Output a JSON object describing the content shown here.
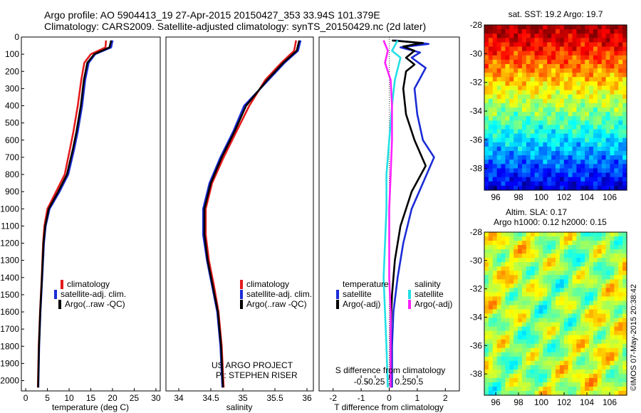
{
  "header": {
    "line1": "Argo profile: AO 5904413_19 27-Apr-2015 20150427_353 33.94S 101.379E",
    "line2": "Climatology: CARS2009. Satellite-adjusted climatology: synTS_20150429.nc (2d later)"
  },
  "colors": {
    "climatology": "#e41a1c",
    "satellite": "#1b2cd6",
    "argo": "#000000",
    "sat_salinity": "#22e0e6",
    "argo_salinity_diff": "#ff22ff"
  },
  "legends": {
    "profile": [
      "climatology",
      "satellite-adj. clim.",
      "Argo(..raw -QC)"
    ],
    "diff_temperature_title": "temperature",
    "diff_salinity_title": "salinity",
    "diff_items": [
      "satellite",
      "Argo(-adj)"
    ]
  },
  "credits": {
    "project": "US ARGO PROJECT",
    "pi": "PI: STEPHEN RISER"
  },
  "sst_map": {
    "title": "sat. SST: 19.2  Argo: 19.7"
  },
  "sla_map": {
    "title1": "Altim. SLA: 0.17",
    "title2": "Argo h1000: 0.12  h2000: 0.15"
  },
  "timestamp": "©IMOS 07-May-2015 20:38:42",
  "chart_data": [
    {
      "type": "line",
      "id": "temperature",
      "xlabel": "temperature (deg C)",
      "xlim": [
        -1,
        31
      ],
      "ylim": [
        2060,
        0
      ],
      "xticks": [
        0,
        5,
        10,
        15,
        20,
        25,
        30
      ],
      "yticks": [
        0,
        100,
        200,
        300,
        400,
        500,
        600,
        700,
        800,
        900,
        1000,
        1100,
        1200,
        1300,
        1400,
        1500,
        1600,
        1700,
        1800,
        1900,
        2000
      ],
      "series": [
        {
          "name": "climatology",
          "color": "#e41a1c",
          "points": [
            [
              18.5,
              20
            ],
            [
              18.4,
              60
            ],
            [
              15,
              100
            ],
            [
              13.5,
              150
            ],
            [
              12.8,
              250
            ],
            [
              12,
              400
            ],
            [
              11,
              550
            ],
            [
              10.2,
              650
            ],
            [
              9,
              800
            ],
            [
              7,
              900
            ],
            [
              5,
              1000
            ],
            [
              4.3,
              1100
            ],
            [
              4,
              1200
            ],
            [
              3.7,
              1400
            ],
            [
              3.3,
              1600
            ],
            [
              3,
              1800
            ],
            [
              2.8,
              2040
            ]
          ]
        },
        {
          "name": "satellite-adj. clim.",
          "color": "#1b2cd6",
          "points": [
            [
              20,
              20
            ],
            [
              19.7,
              60
            ],
            [
              16,
              100
            ],
            [
              14.5,
              150
            ],
            [
              13.7,
              250
            ],
            [
              13,
              400
            ],
            [
              12,
              550
            ],
            [
              11.2,
              650
            ],
            [
              9.8,
              800
            ],
            [
              7.8,
              900
            ],
            [
              5.5,
              1000
            ],
            [
              4.6,
              1100
            ],
            [
              4.2,
              1200
            ],
            [
              3.8,
              1400
            ],
            [
              3.4,
              1600
            ],
            [
              3.1,
              1800
            ],
            [
              2.9,
              2040
            ]
          ]
        },
        {
          "name": "Argo(..raw -QC)",
          "color": "#000000",
          "points": [
            [
              19.7,
              20
            ],
            [
              19.3,
              60
            ],
            [
              15.8,
              100
            ],
            [
              14.2,
              150
            ],
            [
              13.4,
              250
            ],
            [
              12.7,
              400
            ],
            [
              11.7,
              550
            ],
            [
              10.9,
              650
            ],
            [
              9.5,
              800
            ],
            [
              7.5,
              900
            ],
            [
              5.3,
              1000
            ],
            [
              4.5,
              1100
            ],
            [
              4.1,
              1200
            ],
            [
              3.75,
              1400
            ],
            [
              3.35,
              1600
            ],
            [
              3.05,
              1800
            ],
            [
              2.85,
              2040
            ]
          ]
        }
      ]
    },
    {
      "type": "line",
      "id": "salinity",
      "xlabel": "salinity",
      "xlim": [
        33.8,
        36.1
      ],
      "ylim": [
        2060,
        0
      ],
      "xticks": [
        34,
        34.5,
        35,
        35.5,
        36
      ],
      "series": [
        {
          "name": "climatology",
          "color": "#e41a1c",
          "points": [
            [
              35.83,
              20
            ],
            [
              35.8,
              80
            ],
            [
              35.6,
              150
            ],
            [
              35.35,
              250
            ],
            [
              35.1,
              400
            ],
            [
              34.9,
              550
            ],
            [
              34.7,
              700
            ],
            [
              34.52,
              850
            ],
            [
              34.42,
              1000
            ],
            [
              34.42,
              1150
            ],
            [
              34.47,
              1300
            ],
            [
              34.55,
              1450
            ],
            [
              34.62,
              1600
            ],
            [
              34.67,
              1800
            ],
            [
              34.7,
              2040
            ]
          ]
        },
        {
          "name": "satellite-adj. clim.",
          "color": "#1b2cd6",
          "points": [
            [
              35.9,
              20
            ],
            [
              35.86,
              80
            ],
            [
              35.65,
              150
            ],
            [
              35.4,
              250
            ],
            [
              35.02,
              400
            ],
            [
              34.85,
              550
            ],
            [
              34.65,
              700
            ],
            [
              34.48,
              850
            ],
            [
              34.38,
              1000
            ],
            [
              34.38,
              1150
            ],
            [
              34.44,
              1300
            ],
            [
              34.52,
              1450
            ],
            [
              34.6,
              1600
            ],
            [
              34.65,
              1800
            ],
            [
              34.68,
              2040
            ]
          ]
        },
        {
          "name": "Argo(..raw -QC)",
          "color": "#000000",
          "points": [
            [
              35.88,
              20
            ],
            [
              35.84,
              80
            ],
            [
              35.63,
              150
            ],
            [
              35.38,
              250
            ],
            [
              35.05,
              400
            ],
            [
              34.87,
              550
            ],
            [
              34.67,
              700
            ],
            [
              34.5,
              850
            ],
            [
              34.4,
              1000
            ],
            [
              34.4,
              1150
            ],
            [
              34.45,
              1300
            ],
            [
              34.53,
              1450
            ],
            [
              34.61,
              1600
            ],
            [
              34.66,
              1800
            ],
            [
              34.69,
              2040
            ]
          ]
        }
      ]
    },
    {
      "type": "line",
      "id": "difference",
      "xlabel": "T difference from climatology",
      "xlabel_top": "S difference from climatology",
      "xlim": [
        -2.5,
        2.5
      ],
      "ylim": [
        2060,
        0
      ],
      "xticks": [
        -2,
        -1,
        0,
        1,
        2
      ],
      "xticks_top_values": [
        -0.5,
        -0.25,
        0,
        0.25,
        0.5
      ],
      "xticks_top_labels": [
        "-0.5",
        "-0.25",
        "0",
        "0.25",
        "0.5"
      ],
      "series": [
        {
          "name": "temperature satellite",
          "color": "#1b2cd6",
          "points": [
            [
              0.2,
              20
            ],
            [
              1.4,
              40
            ],
            [
              0.4,
              60
            ],
            [
              1.1,
              90
            ],
            [
              0.8,
              120
            ],
            [
              1.3,
              180
            ],
            [
              0.9,
              300
            ],
            [
              1,
              450
            ],
            [
              1.2,
              600
            ],
            [
              1.6,
              700
            ],
            [
              1.2,
              850
            ],
            [
              0.8,
              1000
            ],
            [
              0.5,
              1200
            ],
            [
              0.3,
              1400
            ],
            [
              0.15,
              1600
            ],
            [
              0.1,
              1800
            ],
            [
              0.1,
              2040
            ]
          ]
        },
        {
          "name": "temperature Argo(-adj)",
          "color": "#000000",
          "points": [
            [
              0.1,
              20
            ],
            [
              1.2,
              35
            ],
            [
              0.5,
              55
            ],
            [
              0.9,
              80
            ],
            [
              0.6,
              120
            ],
            [
              0.9,
              160
            ],
            [
              0.6,
              200
            ],
            [
              0.5,
              300
            ],
            [
              0.6,
              450
            ],
            [
              0.9,
              600
            ],
            [
              1.3,
              750
            ],
            [
              0.8,
              900
            ],
            [
              0.4,
              1100
            ],
            [
              0.2,
              1300
            ],
            [
              0.1,
              1500
            ],
            [
              0.05,
              1700
            ],
            [
              0.05,
              1900
            ],
            [
              0.05,
              2040
            ]
          ]
        },
        {
          "name": "salinity satellite",
          "color": "#22e0e6",
          "points": [
            [
              0.3,
              20
            ],
            [
              0.1,
              80
            ],
            [
              0.4,
              120
            ],
            [
              0.2,
              250
            ],
            [
              0.1,
              400
            ],
            [
              0,
              600
            ],
            [
              -0.1,
              800
            ],
            [
              -0.1,
              1000
            ],
            [
              -0.15,
              1200
            ],
            [
              -0.2,
              1400
            ],
            [
              -0.15,
              1600
            ],
            [
              -0.1,
              1800
            ],
            [
              -0.05,
              2040
            ]
          ]
        },
        {
          "name": "salinity Argo(-adj)",
          "color": "#ff22ff",
          "points": [
            [
              -0.2,
              20
            ],
            [
              -0.05,
              80
            ],
            [
              -0.15,
              150
            ],
            [
              0.05,
              250
            ],
            [
              0.1,
              400
            ],
            [
              0.1,
              600
            ],
            [
              0.05,
              800
            ],
            [
              0,
              1000
            ],
            [
              0,
              1200
            ],
            [
              0,
              1400
            ],
            [
              0.05,
              1600
            ],
            [
              0.05,
              1800
            ],
            [
              0.05,
              2040
            ]
          ]
        }
      ]
    },
    {
      "type": "heatmap",
      "id": "sst_map",
      "title": "sat. SST: 19.2  Argo: 19.7",
      "xlim": [
        95,
        107.5
      ],
      "ylim": [
        -39.5,
        -28
      ],
      "xticks": [
        96,
        98,
        100,
        102,
        104,
        106
      ],
      "yticks": [
        -28,
        -30,
        -32,
        -34,
        -36,
        -38
      ]
    },
    {
      "type": "heatmap",
      "id": "sla_map",
      "title": "Altim. SLA: 0.17",
      "xlim": [
        95,
        107.5
      ],
      "ylim": [
        -39.5,
        -28
      ],
      "xticks": [
        96,
        98,
        100,
        102,
        104,
        106
      ],
      "yticks": [
        -28,
        -30,
        -32,
        -34,
        -36,
        -38
      ]
    }
  ]
}
